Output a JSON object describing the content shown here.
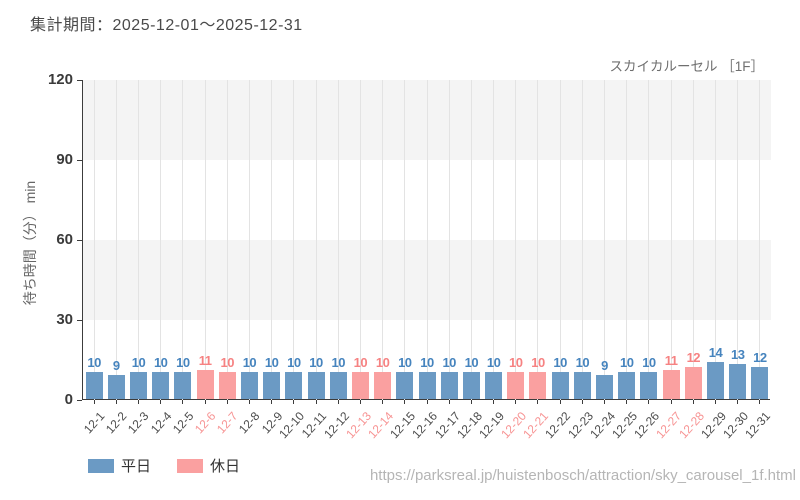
{
  "header": {
    "title": "集計期間：2025-12-01～2025-12-31"
  },
  "chart": {
    "attraction_label": "スカイカルーセル ［1F］",
    "y_axis_title": "待ち時間（分） min",
    "colors": {
      "weekday_bar": "#6b9ac4",
      "holiday_bar": "#faa0a0",
      "weekday_value_label": "#4684be",
      "holiday_value_label": "#f68282",
      "weekday_tick_label": "#4d4d4d",
      "holiday_tick_label": "#f79494",
      "band_gray": "#f4f4f4",
      "gridline": "#e3e3e3",
      "axis": "#3c3c3c"
    }
  },
  "chart_data": {
    "type": "bar",
    "title": "スカイカルーセル ［1F］",
    "xlabel": "",
    "ylabel": "待ち時間（分） min",
    "ylim": [
      0,
      120
    ],
    "y_ticks": [
      0,
      30,
      60,
      90,
      120
    ],
    "grid": true,
    "legend_position": "bottom-left",
    "categories": [
      "12-1",
      "12-2",
      "12-3",
      "12-4",
      "12-5",
      "12-6",
      "12-7",
      "12-8",
      "12-9",
      "12-10",
      "12-11",
      "12-12",
      "12-13",
      "12-14",
      "12-15",
      "12-16",
      "12-17",
      "12-18",
      "12-19",
      "12-20",
      "12-21",
      "12-22",
      "12-23",
      "12-24",
      "12-25",
      "12-26",
      "12-27",
      "12-28",
      "12-29",
      "12-30",
      "12-31"
    ],
    "values": [
      10,
      9,
      10,
      10,
      10,
      11,
      10,
      10,
      10,
      10,
      10,
      10,
      10,
      10,
      10,
      10,
      10,
      10,
      10,
      10,
      10,
      10,
      10,
      9,
      10,
      10,
      11,
      12,
      14,
      13,
      12
    ],
    "day_types": [
      "weekday",
      "weekday",
      "weekday",
      "weekday",
      "weekday",
      "holiday",
      "holiday",
      "weekday",
      "weekday",
      "weekday",
      "weekday",
      "weekday",
      "holiday",
      "holiday",
      "weekday",
      "weekday",
      "weekday",
      "weekday",
      "weekday",
      "holiday",
      "holiday",
      "weekday",
      "weekday",
      "weekday",
      "weekday",
      "weekday",
      "holiday",
      "holiday",
      "weekday",
      "weekday",
      "weekday"
    ],
    "legend": [
      {
        "key": "weekday",
        "label": "平日"
      },
      {
        "key": "holiday",
        "label": "休日"
      }
    ]
  },
  "footer": {
    "source_url": "https://parksreal.jp/huistenbosch/attraction/sky_carousel_1f.html"
  }
}
